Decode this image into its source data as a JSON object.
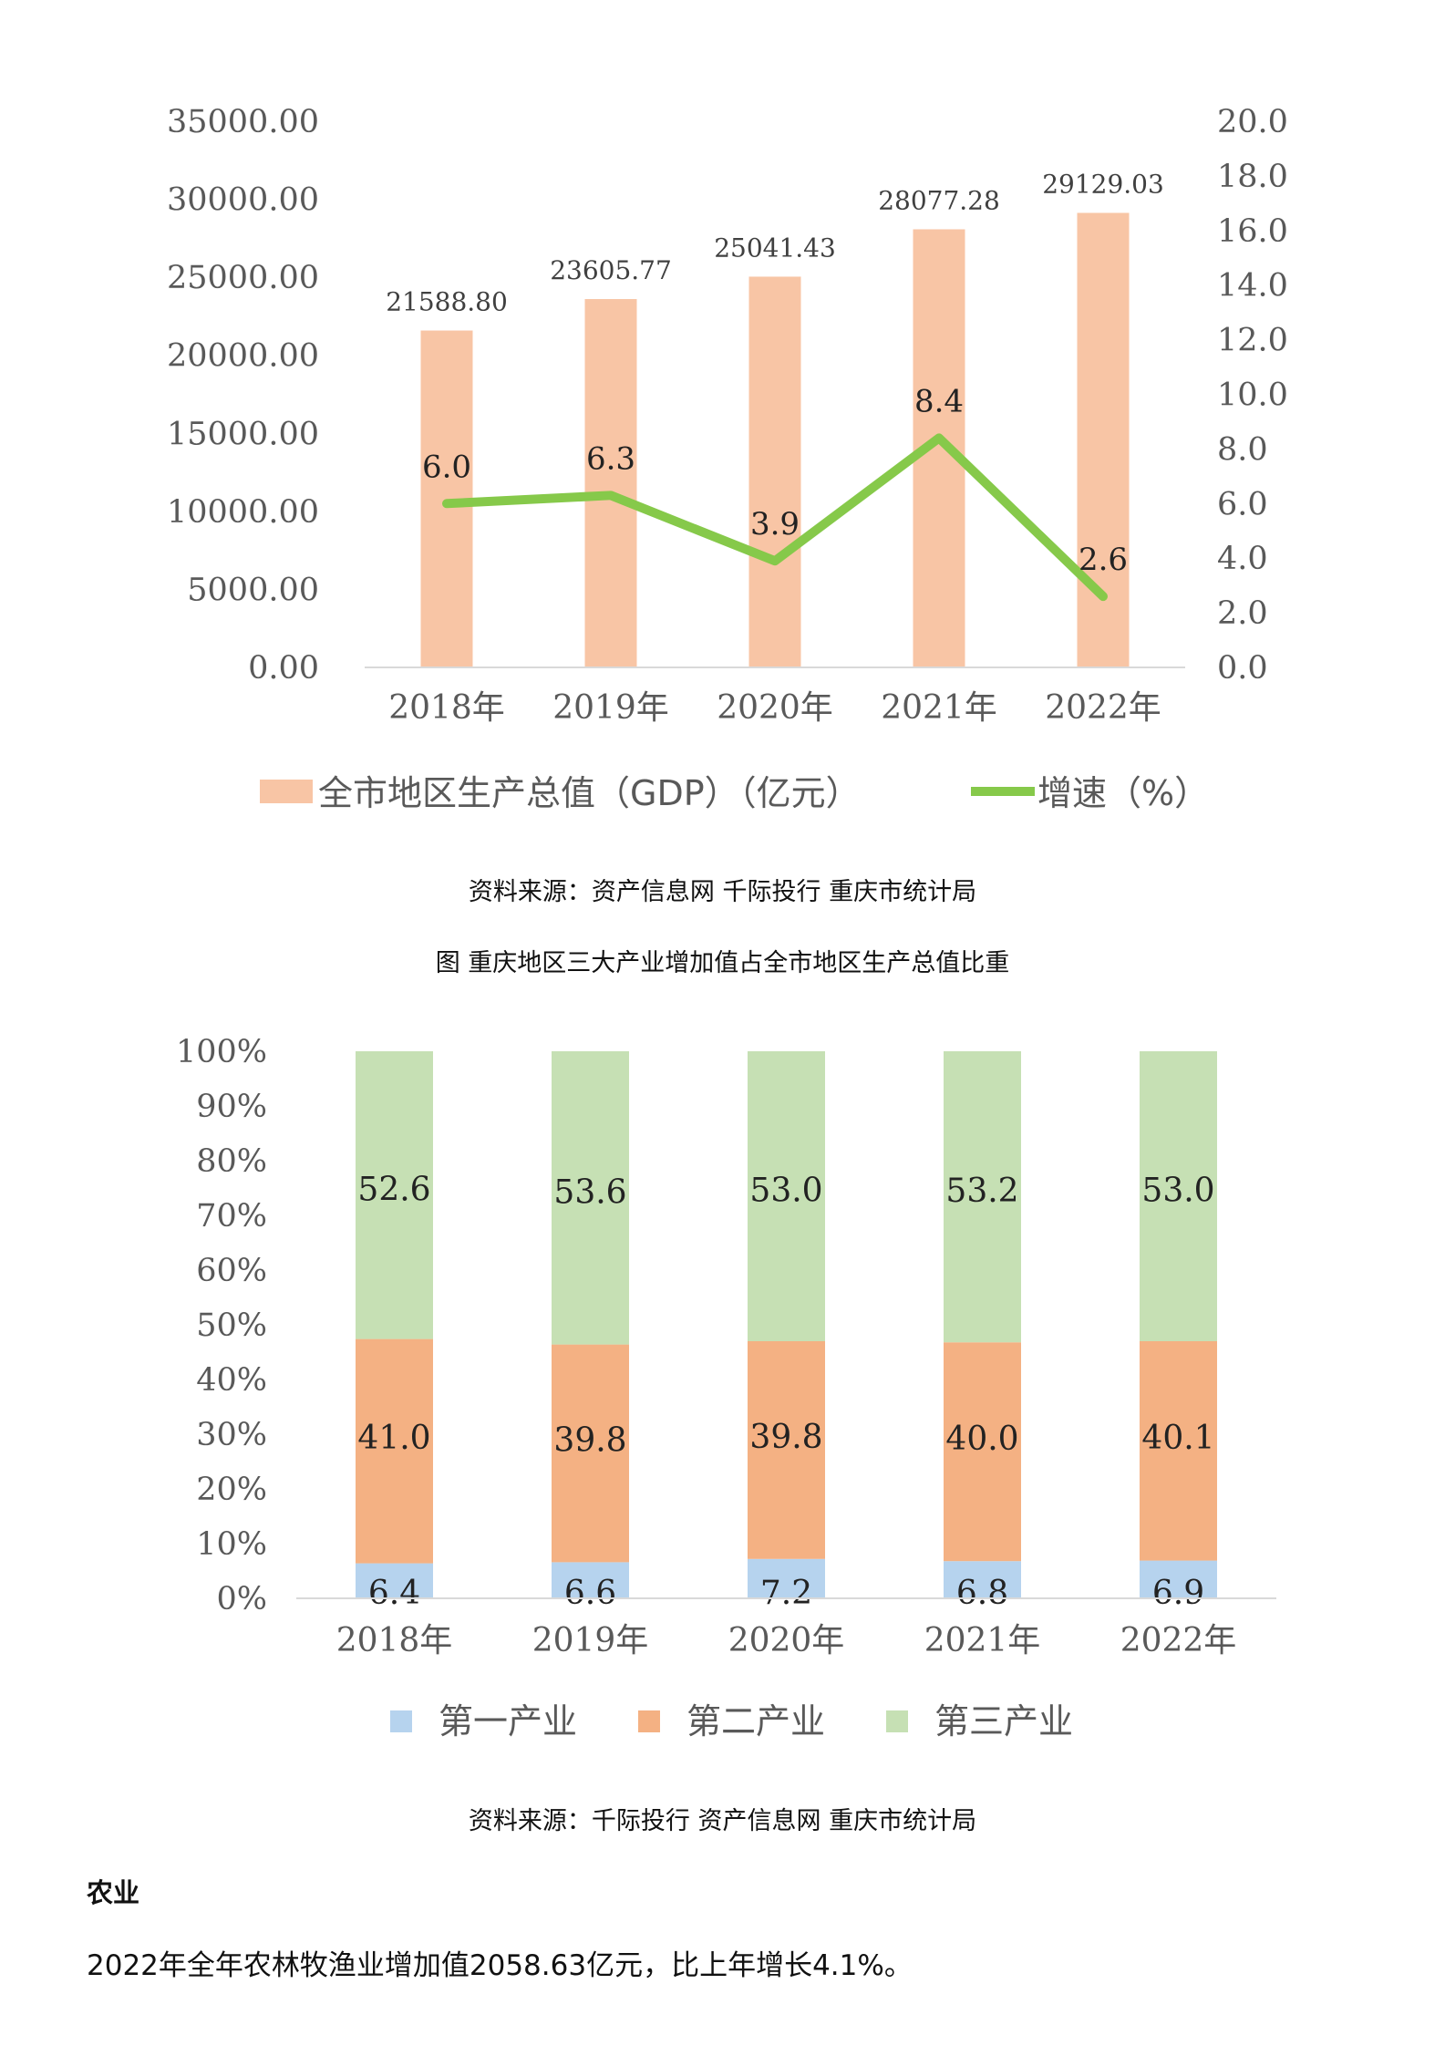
{
  "chart_data": [
    {
      "type": "bar+line",
      "categories": [
        "2018年",
        "2019年",
        "2020年",
        "2021年",
        "2022年"
      ],
      "series": [
        {
          "name": "全市地区生产总值（GDP）（亿元）",
          "type": "bar",
          "axis": "left",
          "values": [
            21588.8,
            23605.77,
            25041.43,
            28077.28,
            29129.03
          ],
          "labels": [
            "21588.80",
            "23605.77",
            "25041.43",
            "28077.28",
            "29129.03"
          ],
          "color": "#f8c5a5"
        },
        {
          "name": "增速（%）",
          "type": "line",
          "axis": "right",
          "values": [
            6.0,
            6.3,
            3.9,
            8.4,
            2.6
          ],
          "labels": [
            "6.0",
            "6.3",
            "3.9",
            "8.4",
            "2.6"
          ],
          "color": "#86c94a"
        }
      ],
      "yleft": {
        "min": 0,
        "max": 35000,
        "ticks": [
          "0.00",
          "5000.00",
          "10000.00",
          "15000.00",
          "20000.00",
          "25000.00",
          "30000.00",
          "35000.00"
        ]
      },
      "yright": {
        "min": 0,
        "max": 20,
        "ticks": [
          "0.0",
          "2.0",
          "4.0",
          "6.0",
          "8.0",
          "10.0",
          "12.0",
          "14.0",
          "16.0",
          "18.0",
          "20.0"
        ]
      },
      "legend_position": "bottom"
    },
    {
      "type": "stacked-bar",
      "title": "图 重庆地区三大产业增加值占全市地区生产总值比重",
      "categories": [
        "2018年",
        "2019年",
        "2020年",
        "2021年",
        "2022年"
      ],
      "series": [
        {
          "name": "第一产业",
          "values": [
            6.4,
            6.6,
            7.2,
            6.8,
            6.9
          ],
          "labels": [
            "6.4",
            "6.6",
            "7.2",
            "6.8",
            "6.9"
          ],
          "color": "#b6d3ee"
        },
        {
          "name": "第二产业",
          "values": [
            41.0,
            39.8,
            39.8,
            40.0,
            40.1
          ],
          "labels": [
            "41.0",
            "39.8",
            "39.8",
            "40.0",
            "40.1"
          ],
          "color": "#f4b183"
        },
        {
          "name": "第三产业",
          "values": [
            52.6,
            53.6,
            53.0,
            53.2,
            53.0
          ],
          "labels": [
            "52.6",
            "53.6",
            "53.0",
            "53.2",
            "53.0"
          ],
          "color": "#c6e0b4"
        }
      ],
      "y": {
        "min": 0,
        "max": 100,
        "ticks": [
          "0%",
          "10%",
          "20%",
          "30%",
          "40%",
          "50%",
          "60%",
          "70%",
          "80%",
          "90%",
          "100%"
        ]
      },
      "legend_position": "bottom"
    }
  ],
  "captions": {
    "source1": "资料来源：资产信息网 千际投行 重庆市统计局",
    "figure_title": "图 重庆地区三大产业增加值占全市地区生产总值比重",
    "source2": "资料来源：千际投行 资产信息网 重庆市统计局"
  },
  "section": {
    "heading": "农业",
    "paragraph": "2022年全年农林牧渔业增加值2058.63亿元，比上年增长4.1%。"
  }
}
